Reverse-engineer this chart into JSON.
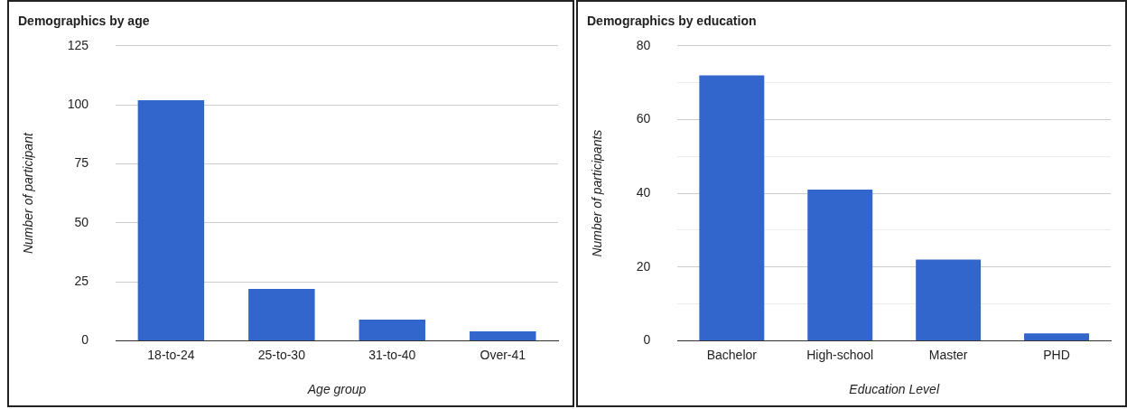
{
  "chart_data": [
    {
      "type": "bar",
      "title": "Demographics by age",
      "xlabel": "Age group",
      "ylabel": "Number of participant",
      "categories": [
        "18-to-24",
        "25-to-30",
        "31-to-40",
        "Over-41"
      ],
      "values": [
        102,
        22,
        9,
        4
      ],
      "color": "#3366cc",
      "ylim": [
        0,
        125
      ],
      "yticks": [
        0,
        25,
        50,
        75,
        100,
        125
      ],
      "grid": "y",
      "legend": false
    },
    {
      "type": "bar",
      "title": "Demographics by education",
      "xlabel": "Education Level",
      "ylabel": "Number of participants",
      "categories": [
        "Bachelor",
        "High-school",
        "Master",
        "PHD"
      ],
      "values": [
        72,
        41,
        22,
        2
      ],
      "color": "#3366cc",
      "ylim": [
        0,
        80
      ],
      "yticks": [
        0,
        {
          "value": 10,
          "label": null
        },
        20,
        {
          "value": 30,
          "label": null
        },
        40,
        {
          "value": 50,
          "label": null
        },
        60,
        {
          "value": 70,
          "label": null
        },
        80
      ],
      "grid": "y",
      "legend": false
    }
  ]
}
